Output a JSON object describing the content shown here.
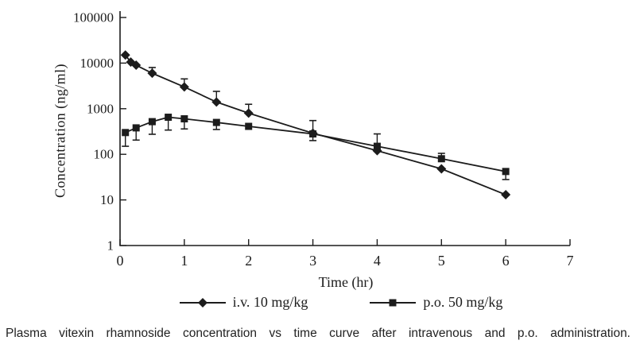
{
  "caption": {
    "text": "Plasma vitexin rhamnoside concentration vs time curve after intravenous and p.o. administration."
  },
  "colors": {
    "ink": "#1c1c1c",
    "background": "#ffffff"
  },
  "chart_data": {
    "type": "line",
    "title": "",
    "xlabel": "Time (hr)",
    "ylabel": "Concentration (ng/ml)",
    "x_axis": {
      "lim": [
        0,
        7
      ],
      "ticks": [
        0,
        1,
        2,
        3,
        4,
        5,
        6,
        7
      ]
    },
    "y_axis": {
      "scale": "log10",
      "lim": [
        1,
        100000
      ],
      "ticks": [
        1,
        10,
        100,
        1000,
        10000,
        100000
      ]
    },
    "grid": false,
    "legend_position": "bottom",
    "color": "#1c1c1c",
    "series": [
      {
        "name": "i.v. 10 mg/kg",
        "marker": "diamond",
        "points": [
          {
            "t": 0.083,
            "c": 15000
          },
          {
            "t": 0.167,
            "c": 10500
          },
          {
            "t": 0.25,
            "c": 9000
          },
          {
            "t": 0.5,
            "c": 6000,
            "up": 8000
          },
          {
            "t": 1,
            "c": 3000,
            "up": 4500
          },
          {
            "t": 1.5,
            "c": 1400,
            "up": 2400
          },
          {
            "t": 2,
            "c": 800,
            "up": 1250
          },
          {
            "t": 3,
            "c": 290,
            "up": 550,
            "lo": 200
          },
          {
            "t": 4,
            "c": 120
          },
          {
            "t": 5,
            "c": 48
          },
          {
            "t": 6,
            "c": 13
          }
        ]
      },
      {
        "name": "p.o. 50 mg/kg",
        "marker": "square",
        "points": [
          {
            "t": 0.083,
            "c": 300,
            "lo": 150
          },
          {
            "t": 0.25,
            "c": 380,
            "lo": 205
          },
          {
            "t": 0.5,
            "c": 520,
            "lo": 275
          },
          {
            "t": 0.75,
            "c": 650,
            "lo": 340
          },
          {
            "t": 1,
            "c": 600,
            "lo": 360
          },
          {
            "t": 1.5,
            "c": 500,
            "lo": 350
          },
          {
            "t": 2,
            "c": 410
          },
          {
            "t": 3,
            "c": 280
          },
          {
            "t": 4,
            "c": 150,
            "up": 280
          },
          {
            "t": 5,
            "c": 80,
            "up": 105
          },
          {
            "t": 6,
            "c": 42,
            "lo": 28
          }
        ]
      }
    ]
  }
}
